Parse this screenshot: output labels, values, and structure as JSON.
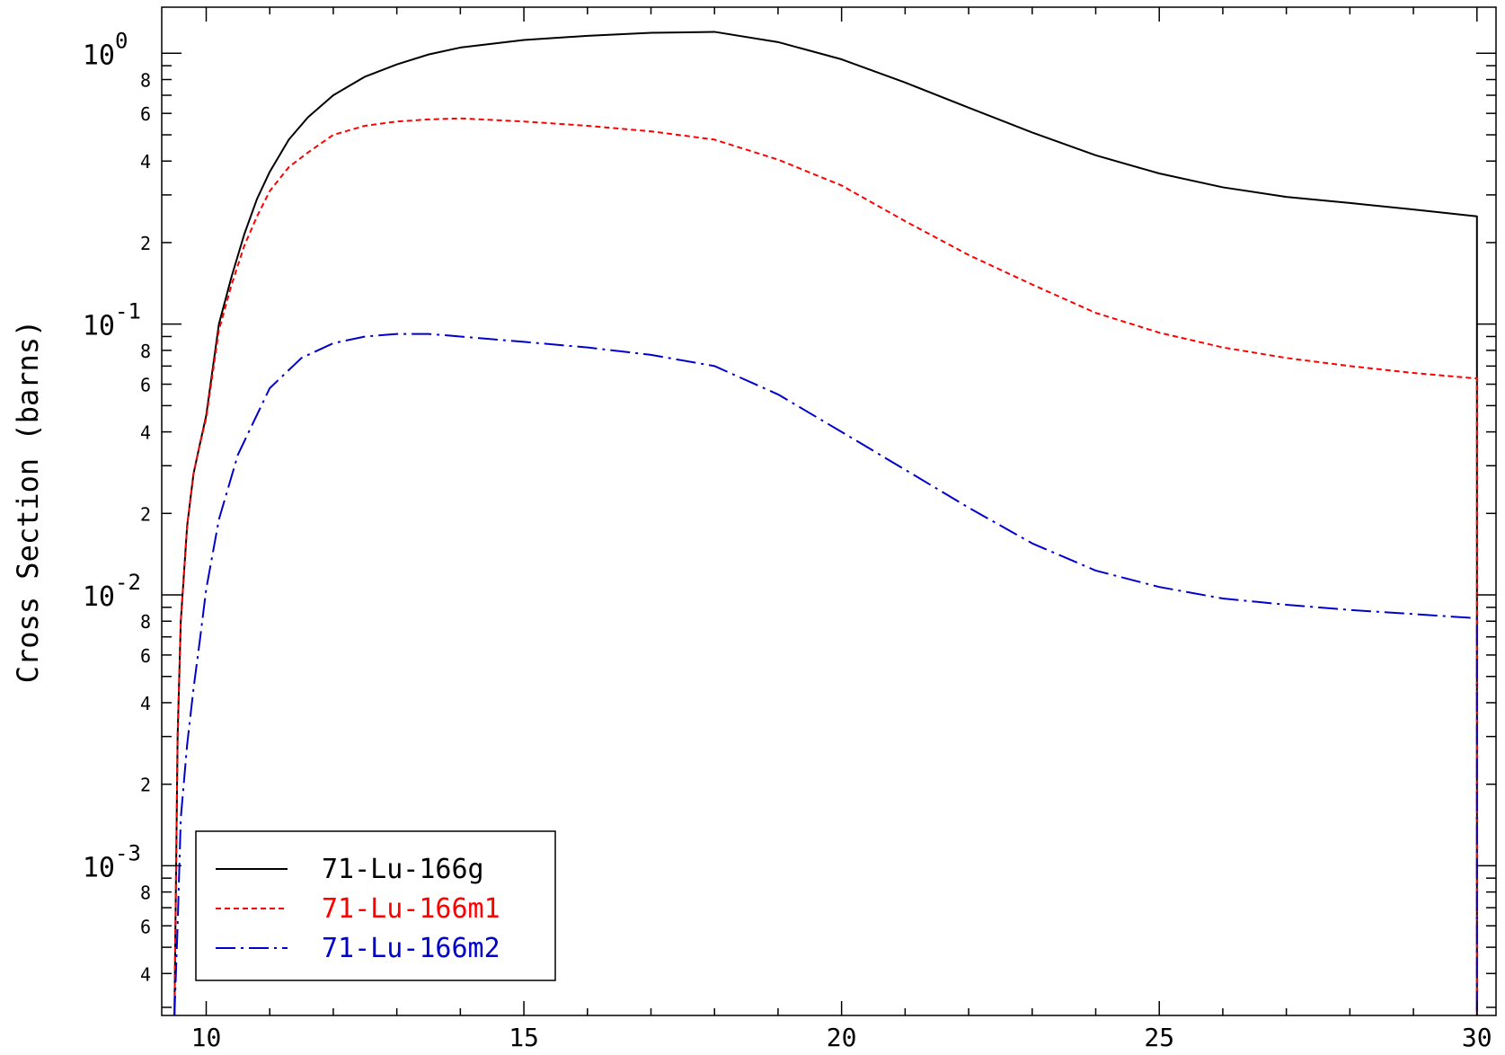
{
  "chart_data": {
    "type": "line",
    "title": "",
    "xlabel": "",
    "ylabel": "Cross Section (barns)",
    "xscale": "linear",
    "yscale": "log",
    "xlim": [
      9.3,
      30.3
    ],
    "ylim": [
      0.00028,
      1.48
    ],
    "x_ticks": [
      {
        "value": 10,
        "label": "10"
      },
      {
        "value": 15,
        "label": "15"
      },
      {
        "value": 20,
        "label": "20"
      },
      {
        "value": 25,
        "label": "25"
      },
      {
        "value": 30,
        "label": "30"
      }
    ],
    "y_major_ticks": [
      {
        "value": 1,
        "base": "10",
        "exp": "0"
      },
      {
        "value": 0.1,
        "base": "10",
        "exp": "-1"
      },
      {
        "value": 0.01,
        "base": "10",
        "exp": "-2"
      },
      {
        "value": 0.001,
        "base": "10",
        "exp": "-3"
      }
    ],
    "y_minor_labels": [
      "2",
      "4",
      "6",
      "8"
    ],
    "grid": false,
    "legend_position": "bottom-left",
    "series": [
      {
        "name": "71-Lu-166g",
        "color": "#000000",
        "dash": "solid",
        "x": [
          9.5,
          9.55,
          9.6,
          9.7,
          9.8,
          9.9,
          10.0,
          10.2,
          10.4,
          10.6,
          10.8,
          11.0,
          11.3,
          11.6,
          12.0,
          12.5,
          13.0,
          13.5,
          14.0,
          15.0,
          16.0,
          17.0,
          18.0,
          19.0,
          20.0,
          21.0,
          22.0,
          23.0,
          24.0,
          25.0,
          26.0,
          27.0,
          28.0,
          29.0,
          30.0,
          30.0
        ],
        "y": [
          0.00028,
          0.003,
          0.008,
          0.018,
          0.028,
          0.036,
          0.046,
          0.1,
          0.15,
          0.215,
          0.29,
          0.365,
          0.48,
          0.58,
          0.7,
          0.82,
          0.91,
          0.99,
          1.05,
          1.12,
          1.16,
          1.19,
          1.2,
          1.1,
          0.95,
          0.78,
          0.63,
          0.51,
          0.42,
          0.36,
          0.32,
          0.295,
          0.28,
          0.265,
          0.25,
          0.00028
        ]
      },
      {
        "name": "71-Lu-166m1",
        "color": "#ff0000",
        "dash": "dashed",
        "x": [
          9.5,
          9.55,
          9.6,
          9.7,
          9.8,
          9.9,
          10.0,
          10.2,
          10.4,
          10.6,
          10.8,
          11.0,
          11.3,
          11.6,
          12.0,
          12.5,
          13.0,
          13.5,
          14.0,
          15.0,
          16.0,
          17.0,
          18.0,
          19.0,
          20.0,
          21.0,
          22.0,
          23.0,
          24.0,
          25.0,
          26.0,
          27.0,
          28.0,
          29.0,
          30.0,
          30.0
        ],
        "y": [
          0.00028,
          0.003,
          0.008,
          0.018,
          0.028,
          0.036,
          0.045,
          0.095,
          0.14,
          0.195,
          0.25,
          0.31,
          0.38,
          0.43,
          0.5,
          0.54,
          0.56,
          0.57,
          0.575,
          0.56,
          0.54,
          0.515,
          0.48,
          0.405,
          0.325,
          0.24,
          0.18,
          0.14,
          0.11,
          0.093,
          0.082,
          0.075,
          0.07,
          0.066,
          0.063,
          0.00028
        ]
      },
      {
        "name": "71-Lu-166m2",
        "color": "#0000cc",
        "dash": "dashdot",
        "x": [
          9.5,
          9.55,
          9.6,
          9.7,
          9.8,
          9.9,
          10.0,
          10.2,
          10.5,
          11.0,
          11.5,
          12.0,
          12.5,
          13.0,
          13.5,
          14.0,
          15.0,
          16.0,
          17.0,
          18.0,
          19.0,
          20.0,
          21.0,
          22.0,
          23.0,
          24.0,
          25.0,
          26.0,
          27.0,
          28.0,
          29.0,
          30.0,
          30.0
        ],
        "y": [
          0.00028,
          0.0006,
          0.0015,
          0.0028,
          0.0045,
          0.0068,
          0.0105,
          0.019,
          0.033,
          0.058,
          0.075,
          0.085,
          0.09,
          0.092,
          0.092,
          0.09,
          0.086,
          0.082,
          0.077,
          0.07,
          0.055,
          0.04,
          0.029,
          0.021,
          0.0155,
          0.0123,
          0.0107,
          0.0097,
          0.0092,
          0.0088,
          0.0085,
          0.0082,
          0.00028
        ]
      }
    ]
  }
}
